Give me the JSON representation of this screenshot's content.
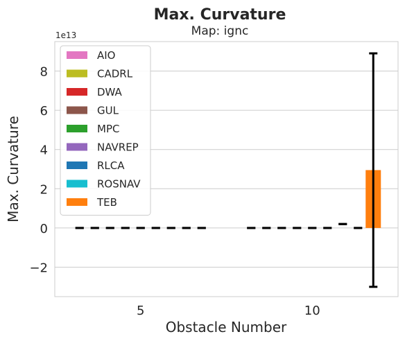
{
  "chart_data": {
    "type": "bar",
    "title": "Max. Curvature",
    "subtitle": "Map: ignc",
    "xlabel": "Obstacle Number",
    "ylabel": "Max. Curvature",
    "y_scale_label": "1e13",
    "y_unit_multiplier": 10000000000000.0,
    "categories": [
      "5",
      "10"
    ],
    "ylim": [
      -3.5,
      9.5
    ],
    "yticks": [
      -2,
      0,
      2,
      4,
      6,
      8
    ],
    "ytick_labels": [
      "−2",
      "0",
      "2",
      "4",
      "6",
      "8"
    ],
    "grid": "y",
    "legend_position": "top-left",
    "series": [
      {
        "name": "AIO",
        "color": "#e377c2",
        "values": [
          0,
          0
        ],
        "err_low": [
          0,
          0
        ],
        "err_high": [
          0,
          0
        ]
      },
      {
        "name": "CADRL",
        "color": "#bcbd22",
        "values": [
          0,
          0
        ],
        "err_low": [
          0,
          0
        ],
        "err_high": [
          0,
          0
        ]
      },
      {
        "name": "DWA",
        "color": "#d62728",
        "values": [
          0,
          0
        ],
        "err_low": [
          0,
          0
        ],
        "err_high": [
          0,
          0
        ]
      },
      {
        "name": "GUL",
        "color": "#8c564b",
        "values": [
          0,
          0
        ],
        "err_low": [
          0,
          0
        ],
        "err_high": [
          0,
          0
        ]
      },
      {
        "name": "MPC",
        "color": "#2ca02c",
        "values": [
          0,
          0
        ],
        "err_low": [
          0,
          0
        ],
        "err_high": [
          0,
          0
        ]
      },
      {
        "name": "NAVREP",
        "color": "#9467bd",
        "values": [
          0,
          0
        ],
        "err_low": [
          0,
          0
        ],
        "err_high": [
          0,
          0
        ]
      },
      {
        "name": "RLCA",
        "color": "#1f77b4",
        "values": [
          0,
          0
        ],
        "err_low": [
          0,
          0.2
        ],
        "err_high": [
          0,
          0.2
        ]
      },
      {
        "name": "ROSNAV",
        "color": "#17becf",
        "values": [
          0,
          0
        ],
        "err_low": [
          0,
          0
        ],
        "err_high": [
          0,
          0
        ]
      },
      {
        "name": "TEB",
        "color": "#ff7f0e",
        "values": [
          0,
          2.95
        ],
        "err_low": [
          0,
          -3.0
        ],
        "err_high": [
          0,
          8.9
        ]
      }
    ]
  }
}
